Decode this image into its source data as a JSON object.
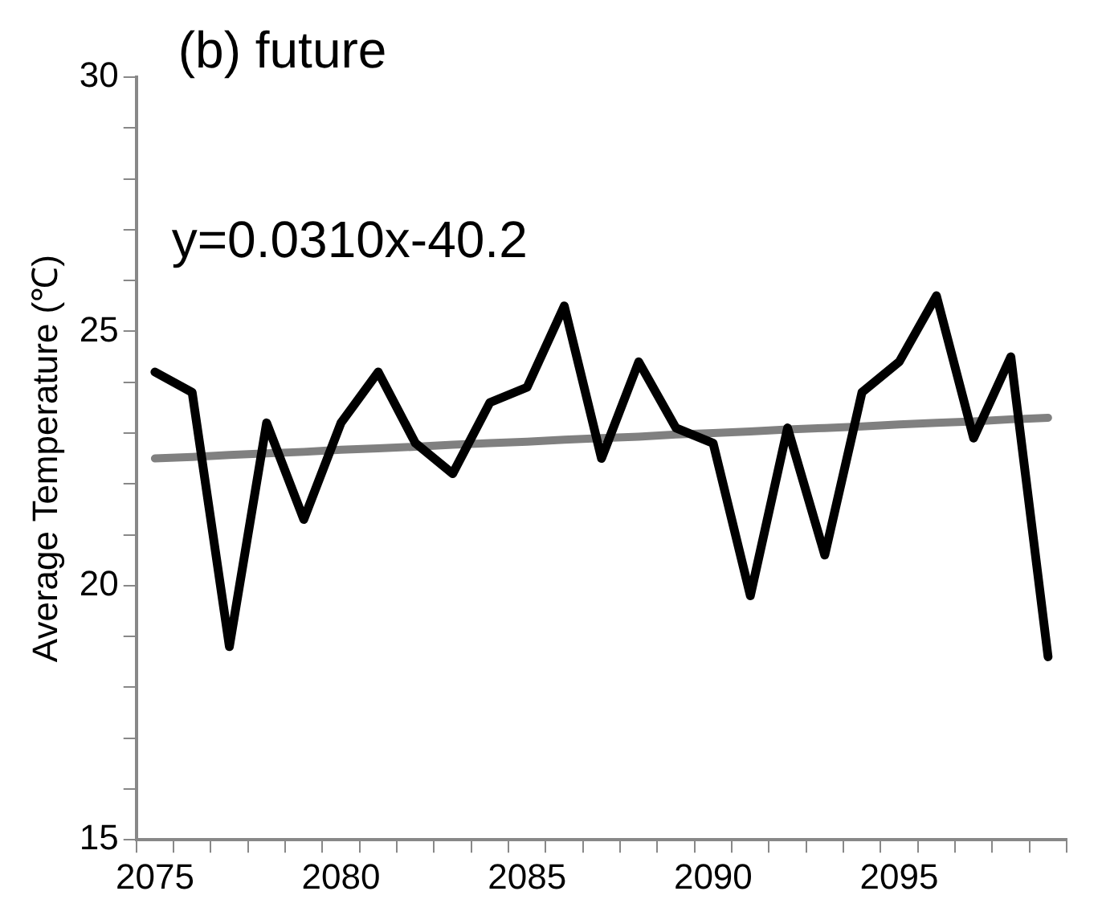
{
  "chart_data": {
    "type": "line",
    "title": "(b) future",
    "ylabel": "Average Temperature (℃)",
    "categories": [
      "2075",
      null,
      null,
      null,
      null,
      "2080",
      null,
      null,
      null,
      null,
      "2085",
      null,
      null,
      null,
      null,
      "2090",
      null,
      null,
      null,
      null,
      "2095",
      null,
      null,
      null,
      null
    ],
    "series": [
      {
        "color": "#000000",
        "values": [
          24.2,
          23.8,
          18.8,
          23.2,
          21.3,
          23.2,
          24.2,
          22.8,
          22.2,
          23.6,
          23.9,
          25.5,
          22.5,
          24.4,
          23.1,
          22.8,
          19.8,
          23.1,
          20.6,
          23.8,
          24.4,
          25.7,
          22.9,
          24.5,
          18.6
        ]
      },
      {
        "type": "line",
        "color": "#808080",
        "values": [
          22.5,
          22.53,
          22.57,
          22.6,
          22.63,
          22.67,
          22.7,
          22.73,
          22.77,
          22.8,
          22.83,
          22.87,
          22.9,
          22.93,
          22.97,
          23.0,
          23.03,
          23.07,
          23.1,
          23.13,
          23.17,
          23.2,
          23.23,
          23.27,
          23.3
        ]
      }
    ],
    "annotations": [
      "y=0.0310x-40.2"
    ],
    "ylim": [
      15,
      30
    ],
    "yticks": [
      15,
      {
        "value": 16,
        "label": null
      },
      {
        "value": 17,
        "label": null
      },
      {
        "value": 18,
        "label": null
      },
      {
        "value": 19,
        "label": null
      },
      20,
      {
        "value": 21,
        "label": null
      },
      {
        "value": 22,
        "label": null
      },
      {
        "value": 23,
        "label": null
      },
      {
        "value": 24,
        "label": null
      },
      25,
      {
        "value": 26,
        "label": null
      },
      {
        "value": 27,
        "label": null
      },
      {
        "value": 28,
        "label": null
      },
      {
        "value": 29,
        "label": null
      },
      30
    ],
    "grid": false,
    "legend": false,
    "marker": "none",
    "line_style": "solid"
  }
}
